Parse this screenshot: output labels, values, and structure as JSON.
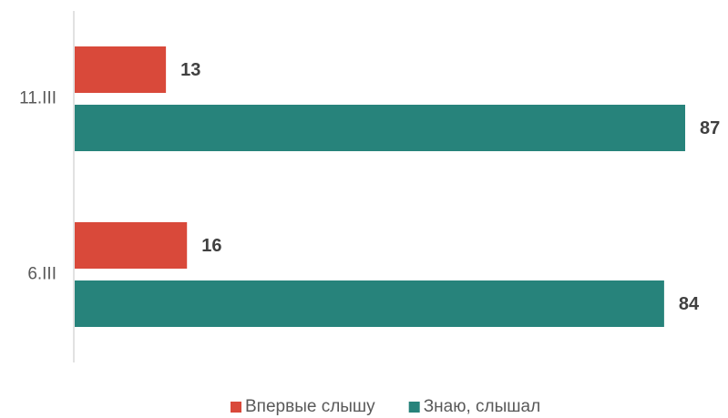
{
  "chart_data": {
    "type": "hbar",
    "categories": [
      "11.III",
      "6.III"
    ],
    "series": [
      {
        "name": "Впервые слышу",
        "color": "#d9493a",
        "values": [
          13,
          16
        ]
      },
      {
        "name": "Знаю, слышал",
        "color": "#27837b",
        "values": [
          87,
          84
        ]
      }
    ],
    "legend": "bottom"
  }
}
